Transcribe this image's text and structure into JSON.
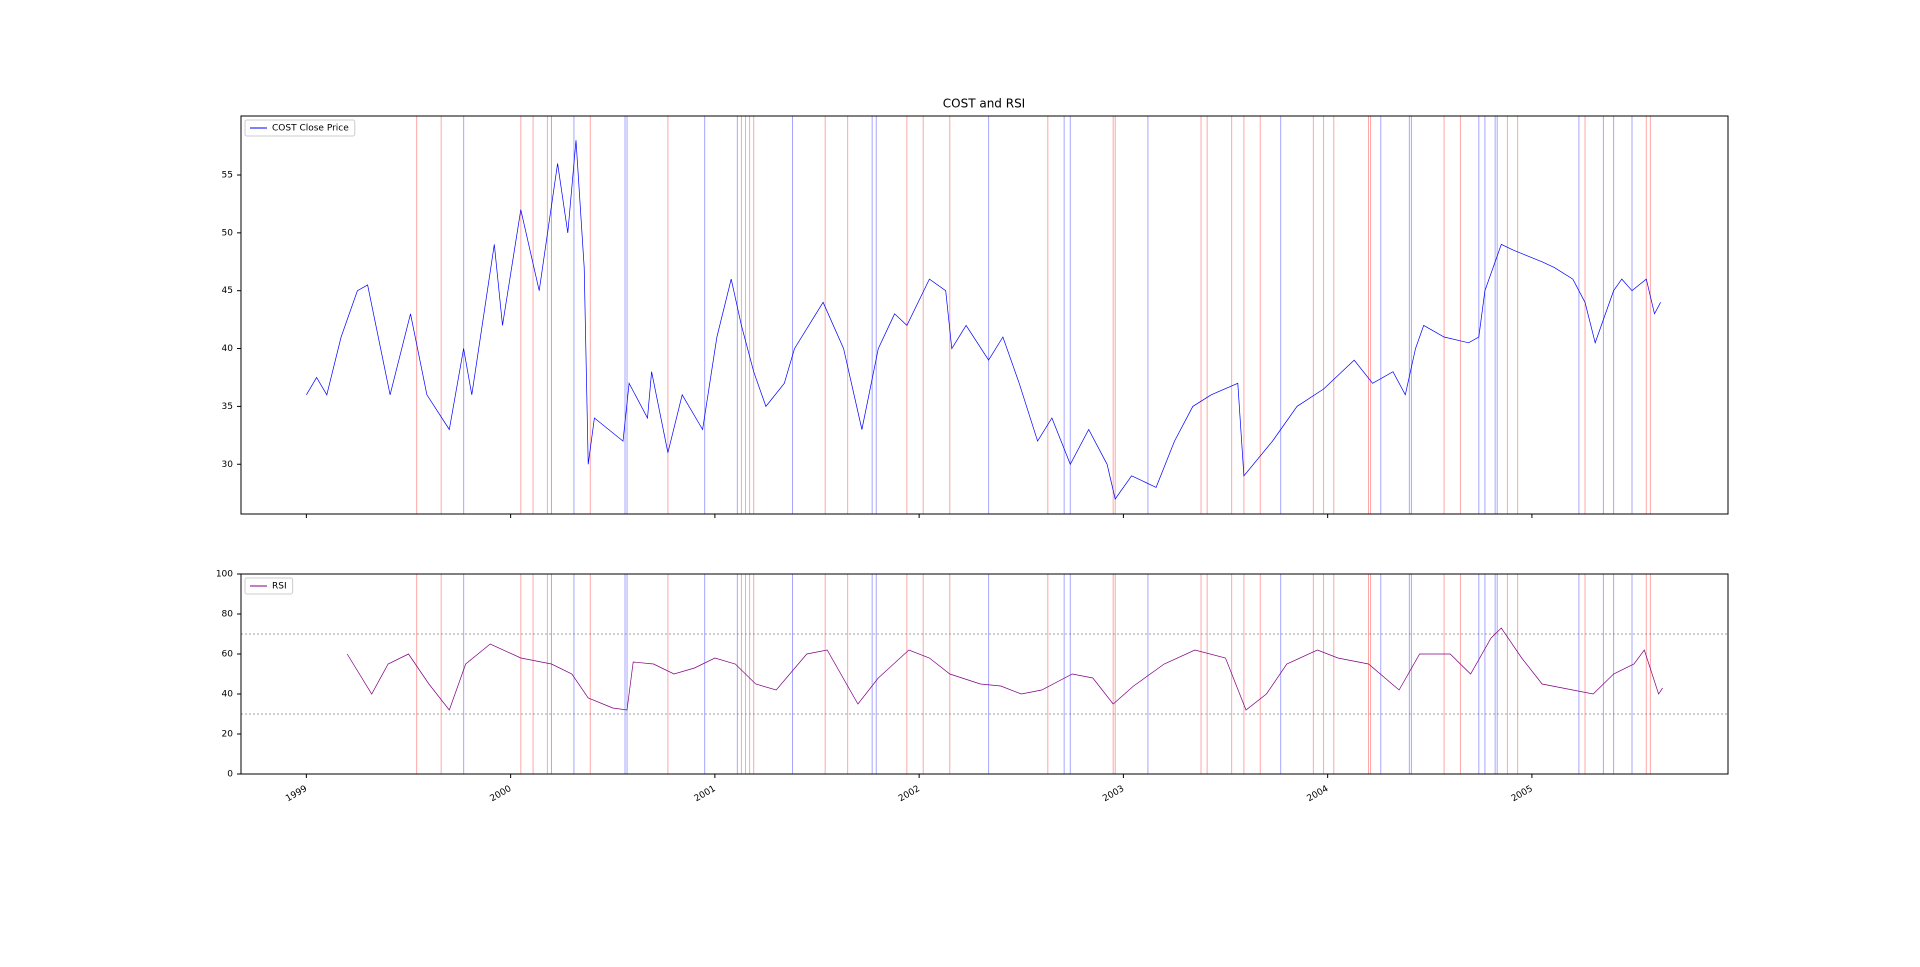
{
  "chart_data": [
    {
      "type": "line",
      "title": "COST and RSI",
      "x": [
        1999.0,
        1999.05,
        1999.1,
        1999.17,
        1999.25,
        1999.3,
        1999.41,
        1999.51,
        1999.59,
        1999.7,
        1999.77,
        1999.81,
        1999.92,
        1999.96,
        2000.05,
        2000.14,
        2000.23,
        2000.28,
        2000.32,
        2000.36,
        2000.38,
        2000.41,
        2000.55,
        2000.58,
        2000.67,
        2000.69,
        2000.77,
        2000.84,
        2000.94,
        2001.01,
        2001.08,
        2001.13,
        2001.19,
        2001.25,
        2001.34,
        2001.39,
        2001.53,
        2001.63,
        2001.72,
        2001.8,
        2001.88,
        2001.94,
        2002.05,
        2002.13,
        2002.16,
        2002.23,
        2002.34,
        2002.41,
        2002.49,
        2002.58,
        2002.65,
        2002.74,
        2002.83,
        2002.92,
        2002.96,
        2003.04,
        2003.16,
        2003.25,
        2003.34,
        2003.43,
        2003.56,
        2003.59,
        2003.73,
        2003.85,
        2003.98,
        2004.13,
        2004.22,
        2004.32,
        2004.38,
        2004.43,
        2004.47,
        2004.57,
        2004.69,
        2004.74,
        2004.77,
        2004.85,
        2004.91,
        2005.05,
        2005.11,
        2005.2,
        2005.26,
        2005.31,
        2005.4,
        2005.44,
        2005.49,
        2005.56,
        2005.6,
        2005.63
      ],
      "series": [
        {
          "name": "COST Close Price",
          "color": "#0000ff",
          "values": [
            36,
            37.5,
            36,
            41,
            45,
            45.5,
            36,
            43,
            36,
            33,
            40,
            36,
            49,
            42,
            52,
            45,
            56,
            50,
            58,
            47,
            30,
            34,
            32,
            37,
            34,
            38,
            31,
            36,
            33,
            41,
            46,
            42,
            38,
            35,
            37,
            40,
            44,
            40,
            33,
            40,
            43,
            42,
            46,
            45,
            40,
            42,
            39,
            41,
            37,
            32,
            34,
            30,
            33,
            30,
            27,
            29,
            28,
            32,
            35,
            36,
            37,
            29,
            32,
            35,
            36.5,
            39,
            37,
            38,
            36,
            40,
            42,
            41,
            40.5,
            41,
            45,
            49,
            48.5,
            47.5,
            47,
            46,
            44,
            40.5,
            45,
            46,
            45,
            46,
            43,
            44
          ]
        }
      ],
      "xlim": [
        1998.68,
        2005.96
      ],
      "xticks": [
        1999,
        2000,
        2001,
        2002,
        2003,
        2004,
        2005
      ],
      "ylim": [
        25.7,
        60.1
      ],
      "yticks": [
        30,
        35,
        40,
        45,
        50,
        55
      ],
      "legend": "upper left",
      "signals": [
        {
          "color": "#ff0000",
          "x": [
            1999.54,
            1999.66,
            2000.05,
            2000.11,
            2000.18,
            2000.39,
            2000.77,
            2001.13,
            2001.15,
            2001.17,
            2001.19,
            2001.54,
            2001.65,
            2001.94,
            2002.02,
            2002.15,
            2002.63,
            2002.95,
            2002.96,
            2003.38,
            2003.41,
            2003.53,
            2003.59,
            2003.67,
            2003.93,
            2003.98,
            2004.03,
            2004.2,
            2004.21,
            2004.57,
            2004.65,
            2004.88,
            2004.93,
            2005.26,
            2005.56,
            2005.58
          ]
        },
        {
          "color": "#0000ff",
          "x": [
            1999.77,
            2000.2,
            2000.31,
            2000.56,
            2000.57,
            2000.95,
            2001.11,
            2001.38,
            2001.77,
            2001.79,
            2002.34,
            2002.71,
            2002.74,
            2003.12,
            2003.77,
            2004.26,
            2004.4,
            2004.41,
            2004.74,
            2004.77,
            2004.82,
            2004.83,
            2005.23,
            2005.35,
            2005.4,
            2005.49
          ]
        }
      ]
    },
    {
      "type": "line",
      "x": [
        1999.2,
        1999.32,
        1999.4,
        1999.5,
        1999.6,
        1999.7,
        1999.78,
        1999.9,
        2000.05,
        2000.2,
        2000.3,
        2000.38,
        2000.5,
        2000.57,
        2000.6,
        2000.7,
        2000.8,
        2000.9,
        2001.0,
        2001.1,
        2001.2,
        2001.3,
        2001.45,
        2001.55,
        2001.7,
        2001.8,
        2001.95,
        2002.05,
        2002.15,
        2002.3,
        2002.4,
        2002.5,
        2002.6,
        2002.75,
        2002.85,
        2002.95,
        2003.05,
        2003.2,
        2003.35,
        2003.5,
        2003.6,
        2003.7,
        2003.8,
        2003.95,
        2004.05,
        2004.2,
        2004.35,
        2004.45,
        2004.6,
        2004.7,
        2004.8,
        2004.85,
        2004.95,
        2005.05,
        2005.2,
        2005.3,
        2005.4,
        2005.5,
        2005.55,
        2005.62,
        2005.64
      ],
      "series": [
        {
          "name": "RSI",
          "color": "#800080",
          "values": [
            60,
            40,
            55,
            60,
            45,
            32,
            55,
            65,
            58,
            55,
            50,
            38,
            33,
            32,
            56,
            55,
            50,
            53,
            58,
            55,
            45,
            42,
            60,
            62,
            35,
            48,
            62,
            58,
            50,
            45,
            44,
            40,
            42,
            50,
            48,
            35,
            44,
            55,
            62,
            58,
            32,
            40,
            55,
            62,
            58,
            55,
            42,
            60,
            60,
            50,
            68,
            73,
            58,
            45,
            42,
            40,
            50,
            55,
            62,
            40,
            43
          ]
        }
      ],
      "xlim": [
        1998.68,
        2005.96
      ],
      "xticks": [
        1999,
        2000,
        2001,
        2002,
        2003,
        2004,
        2005
      ],
      "ylim": [
        0,
        100
      ],
      "yticks": [
        0,
        20,
        40,
        60,
        80,
        100
      ],
      "hlines": [
        70,
        30
      ],
      "legend": "upper left"
    }
  ]
}
